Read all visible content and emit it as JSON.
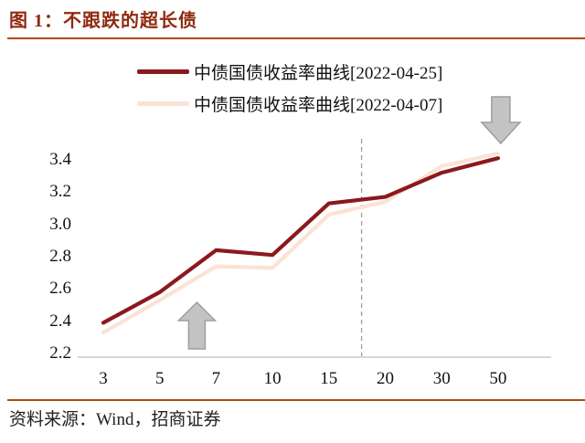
{
  "header": {
    "title": "图 1：不跟跌的超长债",
    "title_color": "#8f2a0e",
    "rule_color": "#ad4b0f"
  },
  "footer": {
    "source": "资料来源：Wind，招商证券"
  },
  "colors": {
    "axis_line": "#c9c9c9",
    "dashed_line": "#9b9b9b",
    "arrow_fill": "#c3c3c3",
    "arrow_stroke": "#9e9e9e",
    "text": "#1a1a1a"
  },
  "chart_data": {
    "type": "line",
    "title": "图 1：不跟跌的超长债",
    "xlabel": "",
    "ylabel": "",
    "categories": [
      "3",
      "5",
      "7",
      "10",
      "15",
      "20",
      "30",
      "50"
    ],
    "series": [
      {
        "name": "中债国债收益率曲线[2022-04-25]",
        "color": "#8b191d",
        "values": [
          2.39,
          2.58,
          2.84,
          2.81,
          3.13,
          3.17,
          3.32,
          3.41
        ]
      },
      {
        "name": "中债国债收益率曲线[2022-04-07]",
        "color": "#fae3d5",
        "values": [
          2.33,
          2.53,
          2.74,
          2.73,
          3.06,
          3.14,
          3.36,
          3.44
        ]
      }
    ],
    "ylim": [
      2.2,
      3.55
    ],
    "yticks": [
      "2.2",
      "2.4",
      "2.6",
      "2.8",
      "3.0",
      "3.2",
      "3.4"
    ],
    "grid": false,
    "legend_position": "top",
    "vline": {
      "style": "dashed",
      "after_category": "15",
      "fraction": 0.58
    },
    "annotations": [
      {
        "shape": "up-arrow",
        "near_category": "7"
      },
      {
        "shape": "down-arrow",
        "near_category": "50"
      }
    ]
  }
}
